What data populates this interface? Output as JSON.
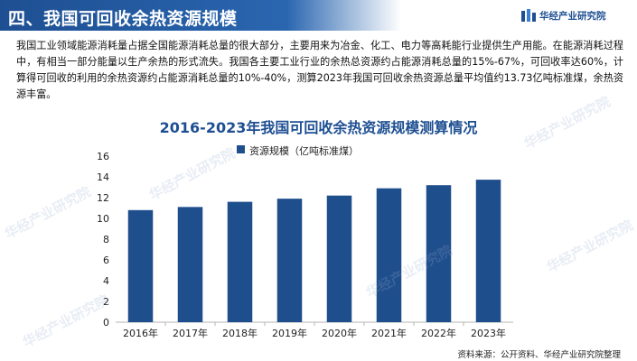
{
  "section": {
    "title": "四、我国可回收余热资源规模"
  },
  "brand": {
    "name": "华经产业研究院",
    "logo_icon": "brand-logo-icon",
    "color": "#1e4f92"
  },
  "intro_text": "我国工业领域能源消耗量占据全国能源消耗总量的很大部分，主要用来为冶金、化工、电力等高耗能行业提供生产用能。在能源消耗过程中，有相当一部分能量以生产余热的形式流失。我国各主要工业行业的余热总资源约占能源消耗总量的15%-67%，可回收率达60%，计算得可回收的利用的余热资源约占能源消耗总量的10%-40%，测算2023年我国可回收余热资源总量平均值约13.73亿吨标准煤，余热资源丰富。",
  "watermark_text": "华经产业研究院",
  "chart_data": {
    "type": "bar",
    "title": "2016-2023年我国可回收余热资源规模测算情况",
    "categories": [
      "2016年",
      "2017年",
      "2018年",
      "2019年",
      "2020年",
      "2021年",
      "2022年",
      "2023年"
    ],
    "series": [
      {
        "name": "资源规模（亿吨标准煤）",
        "values": [
          10.8,
          11.1,
          11.6,
          11.9,
          12.2,
          12.9,
          13.2,
          13.73
        ],
        "color": "#1f4e8c"
      }
    ],
    "ylim": [
      0,
      16
    ],
    "yticks": [
      0,
      2,
      4,
      6,
      8,
      10,
      12,
      14,
      16
    ],
    "grid": false,
    "legend_position": "top"
  },
  "footer": {
    "source": "资料来源：公开资料、华经产业研究院整理"
  }
}
